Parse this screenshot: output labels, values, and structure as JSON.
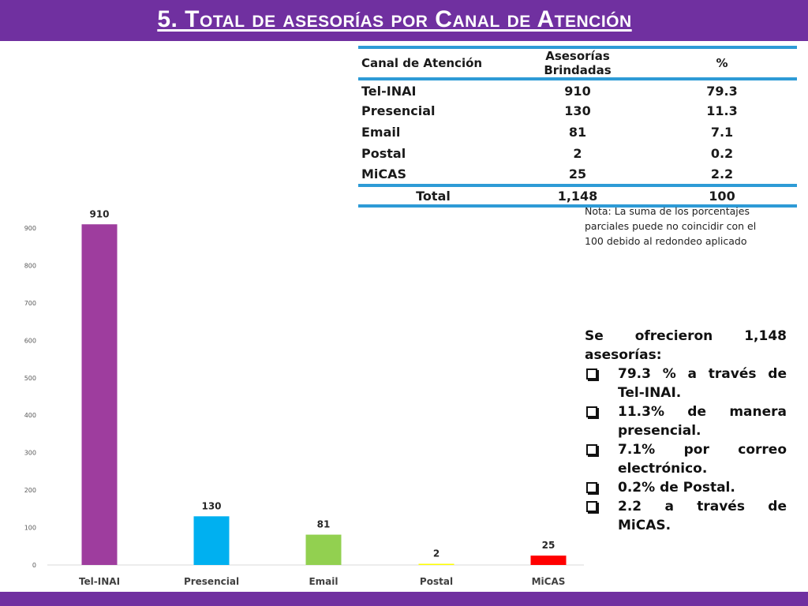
{
  "title": "5. Total de asesorías por Canal de Atención",
  "table": {
    "headers": [
      "Canal de Atención",
      "Asesorías Brindadas",
      "%"
    ],
    "rows": [
      [
        "Tel-INAI",
        "910",
        "79.3"
      ],
      [
        "Presencial",
        "130",
        "11.3"
      ],
      [
        "Email",
        "81",
        "7.1"
      ],
      [
        "Postal",
        "2",
        "0.2"
      ],
      [
        "MiCAS",
        "25",
        "2.2"
      ]
    ],
    "total": [
      "Total",
      "1,148",
      "100"
    ]
  },
  "note": "Nota: La suma de los porcentajes parciales puede no coincidir con el 100 debido al redondeo aplicado",
  "summary": {
    "lead": "Se ofrecieron 1,148 asesorías:",
    "items": [
      "79.3 % a través de Tel-INAI.",
      "11.3% de manera presencial.",
      "7.1% por correo electrónico.",
      "0.2% de Postal.",
      "2.2 a través de MiCAS."
    ]
  },
  "colors": {
    "bar_brand": "#7030a0",
    "table_rule": "#2e9bd6",
    "tel_inai": "#9e3d9e",
    "presencial": "#00b0f0",
    "email": "#92d050",
    "postal": "#ffff00",
    "micas": "#ff0000"
  },
  "chart_data": {
    "type": "bar",
    "categories": [
      "Tel-INAI",
      "Presencial",
      "Email",
      "Postal",
      "MiCAS"
    ],
    "values": [
      910,
      130,
      81,
      2,
      25
    ],
    "data_labels": [
      "910",
      "130",
      "81",
      "2",
      "25"
    ],
    "bar_colors": [
      "#9e3d9e",
      "#00b0f0",
      "#92d050",
      "#ffff00",
      "#ff0000"
    ],
    "yticks": [
      "0",
      "100",
      "200",
      "300",
      "400",
      "500",
      "600",
      "700",
      "800",
      "900"
    ],
    "ylim": [
      0,
      900
    ],
    "grid": false,
    "legend": "none"
  }
}
